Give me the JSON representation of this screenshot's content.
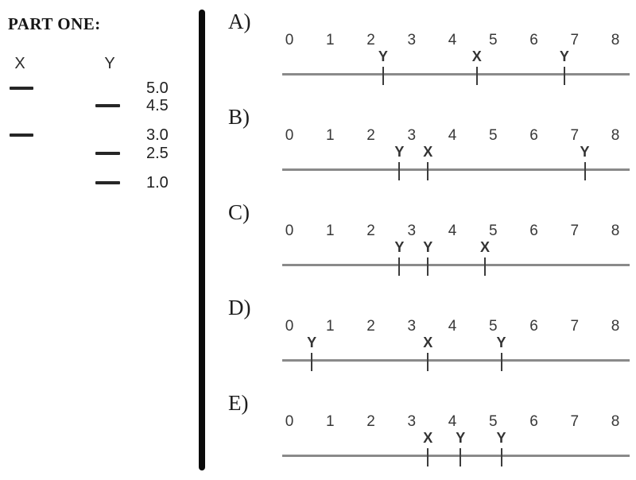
{
  "part_title": "PART ONE:",
  "colors": {
    "ink": "#262626",
    "band": "#262626",
    "axis_line": "#8a8a8a",
    "tick": "#3d3d3d"
  },
  "gel": {
    "lanes": [
      {
        "label": "X",
        "band_sizes": [
          "5.0",
          "3.0"
        ]
      },
      {
        "label": "Y",
        "band_sizes": [
          "4.5",
          "2.5",
          "1.0"
        ]
      }
    ],
    "size_scale": [
      "5.0",
      "4.5",
      "3.0",
      "2.5",
      "1.0"
    ]
  },
  "chart_data": {
    "type": "number-lines",
    "axis": {
      "min": 0,
      "max": 8,
      "tick_labels": [
        "0",
        "1",
        "2",
        "3",
        "4",
        "5",
        "6",
        "7",
        "8"
      ]
    },
    "options": [
      {
        "label": "A)",
        "markers": [
          {
            "name": "Y",
            "position": 2.3
          },
          {
            "name": "X",
            "position": 4.6
          },
          {
            "name": "Y",
            "position": 6.75
          }
        ]
      },
      {
        "label": "B)",
        "markers": [
          {
            "name": "Y",
            "position": 2.7
          },
          {
            "name": "X",
            "position": 3.4
          },
          {
            "name": "Y",
            "position": 7.25
          }
        ]
      },
      {
        "label": "C)",
        "markers": [
          {
            "name": "Y",
            "position": 2.7
          },
          {
            "name": "Y",
            "position": 3.4
          },
          {
            "name": "X",
            "position": 4.8
          }
        ]
      },
      {
        "label": "D)",
        "markers": [
          {
            "name": "Y",
            "position": 0.55
          },
          {
            "name": "X",
            "position": 3.4
          },
          {
            "name": "Y",
            "position": 5.2
          }
        ]
      },
      {
        "label": "E)",
        "markers": [
          {
            "name": "X",
            "position": 3.4
          },
          {
            "name": "Y",
            "position": 4.2
          },
          {
            "name": "Y",
            "position": 5.2
          }
        ]
      }
    ]
  }
}
